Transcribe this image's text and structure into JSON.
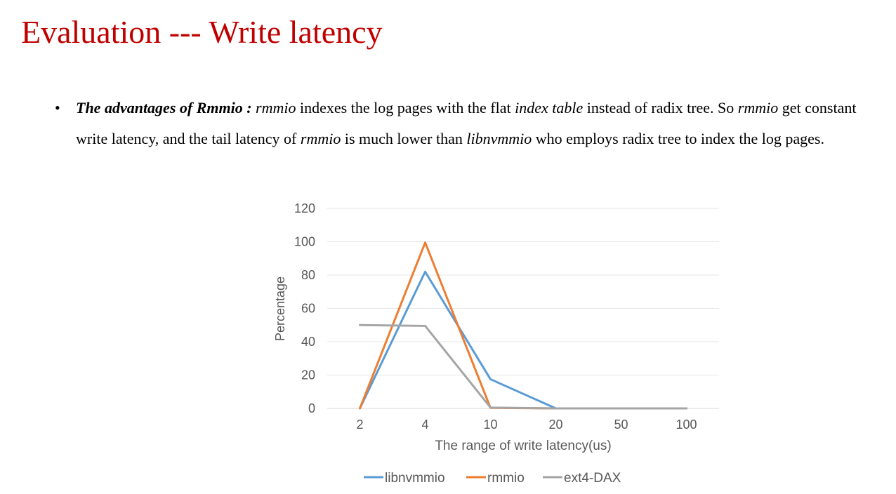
{
  "slide": {
    "title": "Evaluation --- Write latency",
    "title_color": "#c00000"
  },
  "bullet": {
    "lead": "The advantages of Rmmio :",
    "segments": [
      {
        "text": " ",
        "italic": false
      },
      {
        "text": "rmmio",
        "italic": true
      },
      {
        "text": " indexes the log pages with the flat ",
        "italic": false
      },
      {
        "text": "index table",
        "italic": true
      },
      {
        "text": " instead of radix tree. So ",
        "italic": false
      },
      {
        "text": "rmmio",
        "italic": true
      },
      {
        "text": " get constant write latency, and the tail latency of ",
        "italic": false
      },
      {
        "text": "rmmio",
        "italic": true
      },
      {
        "text": " is much lower than ",
        "italic": false
      },
      {
        "text": "libnvmmio",
        "italic": true
      },
      {
        "text": " who employs radix tree to index the log pages.",
        "italic": false
      }
    ]
  },
  "chart_data": {
    "type": "line",
    "categories": [
      "2",
      "4",
      "10",
      "20",
      "50",
      "100"
    ],
    "series": [
      {
        "name": "libnvmmio",
        "color": "#5b9bd5",
        "values": [
          0,
          82,
          17.5,
          0,
          0,
          0
        ]
      },
      {
        "name": "rmmio",
        "color": "#ed7d31",
        "values": [
          0,
          99.5,
          0.3,
          0,
          0,
          0
        ]
      },
      {
        "name": "ext4-DAX",
        "color": "#a5a5a5",
        "values": [
          50,
          49.5,
          0.5,
          0,
          0,
          0
        ]
      }
    ],
    "xlabel": "The range of write latency(us)",
    "ylabel": "Percentage",
    "ylim": [
      0,
      120
    ],
    "yticks": [
      0,
      20,
      40,
      60,
      80,
      100,
      120
    ],
    "grid": true,
    "legend": "bottom"
  }
}
